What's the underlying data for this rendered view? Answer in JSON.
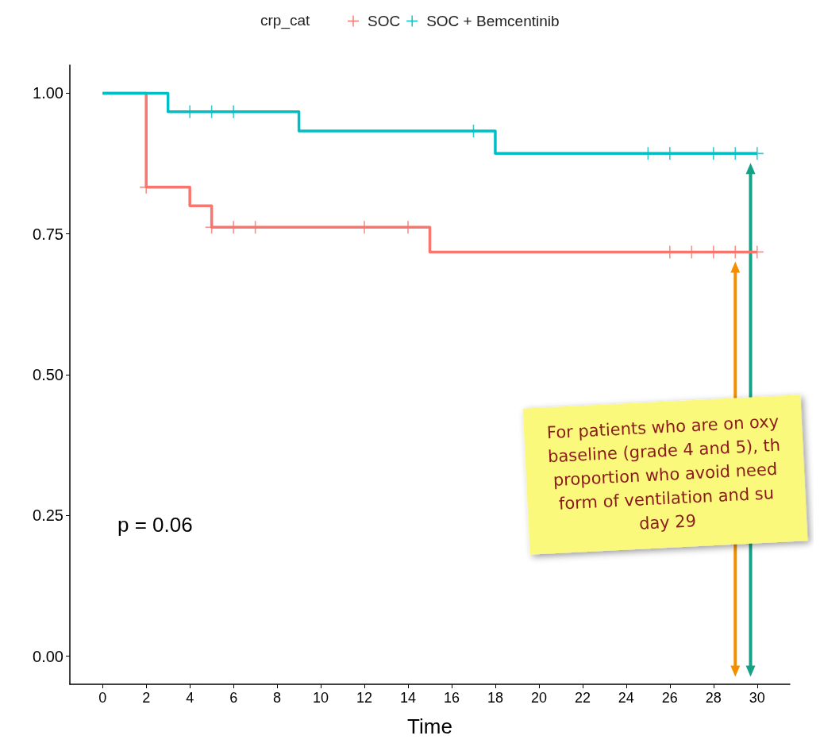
{
  "chart_data": {
    "type": "step",
    "xlabel": "Time",
    "legend_title": "crp_cat",
    "legend": "top",
    "xlim": [
      -1.5,
      31.5
    ],
    "xticks": [
      0,
      2,
      4,
      6,
      8,
      10,
      12,
      14,
      16,
      18,
      20,
      22,
      24,
      26,
      28,
      30
    ],
    "ylim": [
      -0.05,
      1.05
    ],
    "yticks": [
      {
        "value": 0,
        "label": "0.00"
      },
      {
        "value": 0.25,
        "label": "0.25"
      },
      {
        "value": 0.5,
        "label": "0.50"
      },
      {
        "value": 0.75,
        "label": "0.75"
      },
      {
        "value": 1,
        "label": "1.00"
      }
    ],
    "grid": false,
    "line_style": "solid",
    "series": [
      {
        "name": "SOC",
        "color": "#f8766d",
        "x": [
          0,
          2,
          4,
          5,
          15,
          30
        ],
        "values": [
          1,
          0.833,
          0.8,
          0.762,
          0.718,
          0.718
        ]
      },
      {
        "name": "SOC + Bemcentinib",
        "color": "#00bfc4",
        "x": [
          0,
          3,
          9,
          18,
          30
        ],
        "values": [
          1,
          0.967,
          0.933,
          0.893,
          0.893
        ]
      },
      {
        "type": "scatter",
        "marker": "cross",
        "color": "#f8766d",
        "x": [
          2,
          5,
          6,
          7,
          12,
          14,
          26,
          27,
          28,
          29,
          30
        ],
        "values": [
          0.833,
          0.762,
          0.762,
          0.762,
          0.762,
          0.762,
          0.718,
          0.718,
          0.718,
          0.718,
          0.718
        ]
      },
      {
        "type": "scatter",
        "marker": "cross",
        "color": "#00bfc4",
        "x": [
          4,
          5,
          6,
          17,
          25,
          26,
          28,
          29,
          30
        ],
        "values": [
          0.967,
          0.967,
          0.967,
          0.933,
          0.893,
          0.893,
          0.893,
          0.893,
          0.893
        ]
      }
    ],
    "annotations": [
      "p = 0.06",
      "For patients who are on oxy\nbaseline (grade 4 and 5), th\nproportion who avoid need\nform of ventilation and su\nday 29"
    ]
  }
}
